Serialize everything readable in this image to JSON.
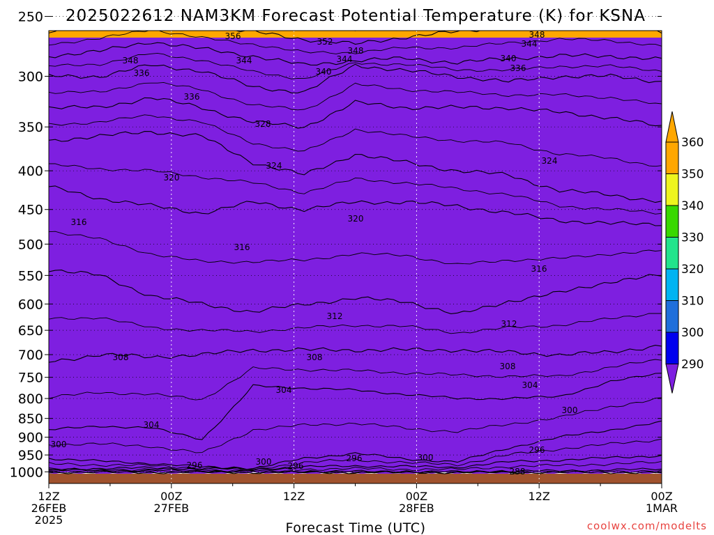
{
  "chart_data": {
    "type": "contour",
    "title": "2025022612 NAM3KM Forecast Potential Temperature (K) for KSNA",
    "xlabel": "Forecast Time (UTC)",
    "ylabel": "",
    "x_hours": [
      0,
      6,
      12,
      18,
      24,
      30,
      36,
      42,
      48,
      54,
      60,
      66,
      72
    ],
    "x_ticks": [
      {
        "hour": 0,
        "lines": [
          "12Z",
          "26FEB",
          "2025"
        ]
      },
      {
        "hour": 12,
        "lines": [
          "00Z",
          "27FEB"
        ]
      },
      {
        "hour": 24,
        "lines": [
          "12Z"
        ]
      },
      {
        "hour": 36,
        "lines": [
          "00Z",
          "28FEB"
        ]
      },
      {
        "hour": 48,
        "lines": [
          "12Z"
        ]
      },
      {
        "hour": 60,
        "lines": [
          "00Z",
          "1MAR"
        ]
      }
    ],
    "y_ticks": [
      250,
      300,
      350,
      400,
      450,
      500,
      550,
      600,
      650,
      700,
      750,
      800,
      850,
      900,
      950,
      1000
    ],
    "colorbar_labels": [
      "290",
      "300",
      "310",
      "320",
      "330",
      "340",
      "350",
      "360"
    ],
    "colorbar_colors": [
      "#7e1fe0",
      "#0000ee",
      "#1f6fdb",
      "#00b4f2",
      "#22e48c",
      "#38d800",
      "#eef51e",
      "#ffa700"
    ],
    "contour_labels": [
      "356",
      "352",
      "348",
      "348",
      "344",
      "344",
      "348",
      "344",
      "340",
      "336",
      "340",
      "336",
      "336",
      "328",
      "324",
      "324",
      "320",
      "320",
      "316",
      "316",
      "316",
      "312",
      "312",
      "308",
      "308",
      "308",
      "304",
      "304",
      "304",
      "300",
      "296",
      "300",
      "300",
      "296",
      "300",
      "296",
      "288",
      "296"
    ],
    "contours": [
      {
        "value": 288,
        "p": [
          1002,
          1002,
          1002,
          1002,
          1002,
          1002,
          1002,
          1002,
          1002,
          1002,
          1002,
          1002,
          1002
        ]
      },
      {
        "value": 292,
        "p": [
          996,
          996,
          996,
          998,
          998,
          999,
          999,
          1000,
          1000,
          998,
          997,
          994,
          992
        ]
      },
      {
        "value": 296,
        "p": [
          992,
          990,
          988,
          991,
          992,
          985,
          982,
          984,
          986,
          970,
          965,
          958,
          952
        ]
      },
      {
        "value": 300,
        "p": [
          960,
          968,
          975,
          985,
          990,
          960,
          945,
          962,
          970,
          930,
          900,
          880,
          860
        ]
      },
      {
        "value": 304,
        "p": [
          880,
          870,
          875,
          905,
          770,
          775,
          780,
          790,
          800,
          800,
          795,
          760,
          740
        ]
      },
      {
        "value": 308,
        "p": [
          715,
          700,
          705,
          700,
          690,
          690,
          690,
          690,
          690,
          695,
          700,
          695,
          680
        ]
      },
      {
        "value": 312,
        "p": [
          540,
          550,
          585,
          600,
          615,
          600,
          590,
          595,
          620,
          595,
          580,
          560,
          550
        ]
      },
      {
        "value": 316,
        "p": [
          420,
          435,
          445,
          455,
          440,
          450,
          440,
          440,
          445,
          455,
          465,
          470,
          470
        ]
      },
      {
        "value": 320,
        "p": [
          365,
          360,
          355,
          360,
          390,
          405,
          380,
          390,
          400,
          405,
          425,
          430,
          440
        ]
      },
      {
        "value": 324,
        "p": [
          330,
          330,
          320,
          330,
          345,
          350,
          325,
          330,
          330,
          330,
          335,
          340,
          350
        ]
      },
      {
        "value": 328,
        "p": [
          300,
          300,
          290,
          295,
          310,
          315,
          290,
          295,
          300,
          305,
          300,
          300,
          305
        ]
      },
      {
        "value": 332,
        "p": [
          282,
          278,
          270,
          276,
          282,
          290,
          286,
          284,
          288,
          284,
          282,
          282,
          285
        ]
      },
      {
        "value": 336,
        "p": [
          262,
          257,
          250,
          258,
          262,
          268,
          272,
          266,
          262,
          258,
          254,
          256,
          262
        ]
      },
      {
        "value": 340,
        "p": [
          240,
          234,
          230,
          236,
          240,
          244,
          250,
          244,
          232,
          230,
          226,
          226,
          236
        ]
      },
      {
        "value": 344,
        "p": [
          218,
          214,
          210,
          214,
          216,
          220,
          228,
          220,
          208,
          208,
          204,
          204,
          214
        ]
      },
      {
        "value": 348,
        "p": [
          198,
          194,
          190,
          194,
          196,
          200,
          204,
          200,
          190,
          188,
          184,
          186,
          194
        ]
      },
      {
        "value": 352,
        "p": [
          180,
          176,
          172,
          176,
          178,
          182,
          186,
          182,
          174,
          172,
          168,
          170,
          176
        ]
      },
      {
        "value": 356,
        "p": [
          164,
          160,
          157,
          160,
          162,
          165,
          168,
          166,
          158,
          157,
          154,
          156,
          160
        ]
      }
    ],
    "level_fills": [
      {
        "value": 300,
        "p": [
          1005,
          1005,
          1005,
          1005,
          1005,
          1005,
          1005,
          1005,
          1005,
          1005,
          1005,
          1005,
          1005
        ],
        "color": "#7e1fe0"
      },
      {
        "value": 310,
        "p": [
          988,
          985,
          982,
          986,
          988,
          975,
          968,
          972,
          978,
          960,
          950,
          930,
          915
        ],
        "color": "#0000ee"
      },
      {
        "value": 320,
        "p": [
          940,
          946,
          952,
          962,
          968,
          940,
          920,
          935,
          946,
          905,
          845,
          800,
          770
        ],
        "color": "#1f6fdb"
      },
      {
        "value": 330,
        "p": [
          545,
          560,
          595,
          610,
          625,
          610,
          600,
          605,
          630,
          605,
          590,
          570,
          555
        ],
        "color": "#00b4f2"
      },
      {
        "value": 340,
        "p": [
          365,
          360,
          355,
          360,
          390,
          405,
          380,
          390,
          400,
          405,
          425,
          430,
          440
        ],
        "color": "#22e48c"
      },
      {
        "value": 350,
        "p": [
          268,
          262,
          255,
          262,
          268,
          275,
          278,
          272,
          266,
          262,
          258,
          260,
          268
        ],
        "color": "#38d800"
      },
      {
        "value": 360,
        "p": [
          225,
          220,
          215,
          220,
          224,
          228,
          235,
          228,
          218,
          216,
          212,
          214,
          222
        ],
        "color": "#eef51e"
      },
      {
        "value": 370,
        "p": [
          180,
          176,
          172,
          176,
          178,
          182,
          186,
          182,
          174,
          172,
          168,
          170,
          176
        ],
        "color": "#ffa700"
      }
    ],
    "ground_color": "#a0522d",
    "ylim": [
      1000,
      200
    ],
    "xlim": [
      0,
      60
    ]
  },
  "credit": "coolwx.com/modelts"
}
